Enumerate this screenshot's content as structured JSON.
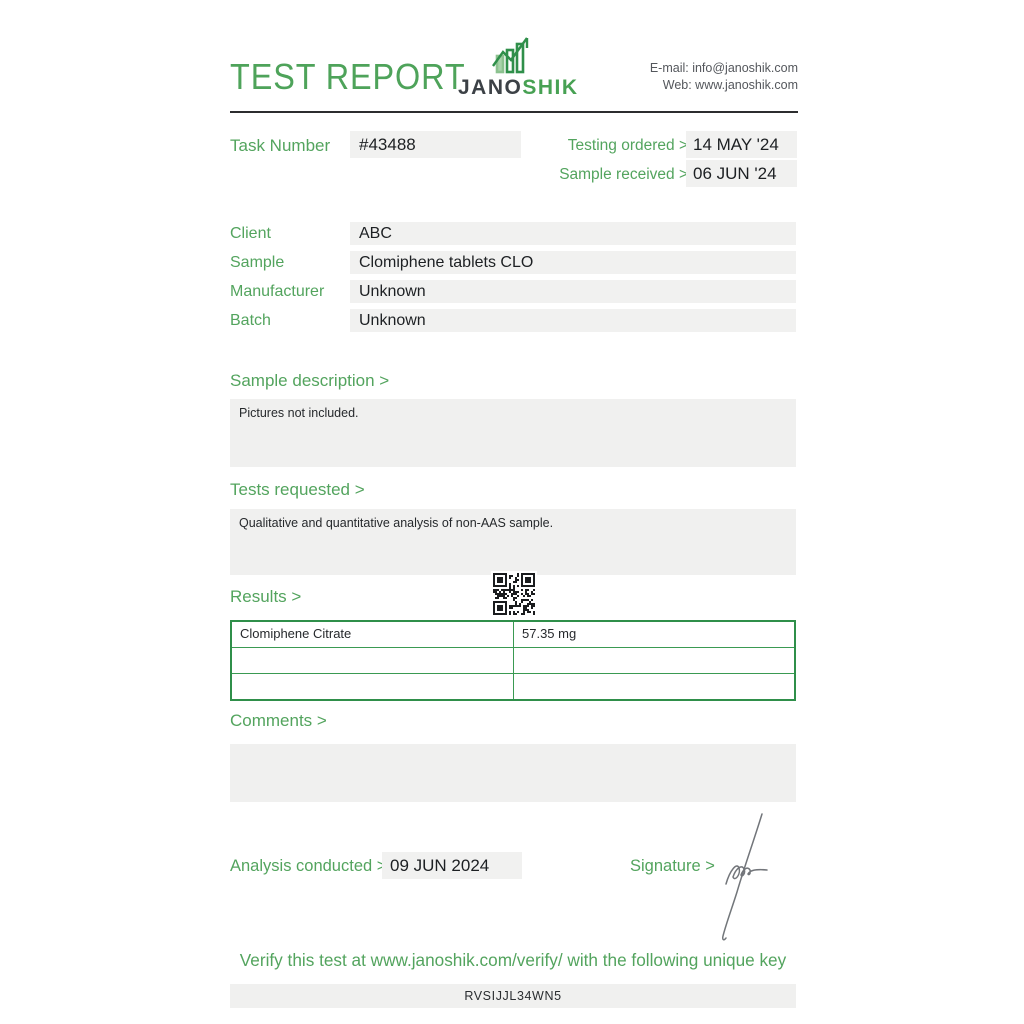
{
  "accent_color": "#53a45e",
  "header": {
    "title": "TEST REPORT",
    "logo": {
      "word_dark": "JANO",
      "word_green": "SHIK",
      "mark_icon": "chart-bars-logo"
    },
    "contact": {
      "email_line": "E-mail: info@janoshik.com",
      "web_line": "Web: www.janoshik.com"
    }
  },
  "task": {
    "label": "Task Number",
    "number": "#43488",
    "testing_ordered_label": "Testing ordered >",
    "testing_ordered_value": "14 MAY '24",
    "sample_received_label": "Sample received >",
    "sample_received_value": "06 JUN '24"
  },
  "info_fields": [
    {
      "label": "Client",
      "value": "ABC"
    },
    {
      "label": "Sample",
      "value": "Clomiphene tablets CLO"
    },
    {
      "label": "Manufacturer",
      "value": "Unknown"
    },
    {
      "label": "Batch",
      "value": "Unknown"
    }
  ],
  "sections": {
    "sample_description": {
      "label": "Sample description >",
      "content": "Pictures not included."
    },
    "tests_requested": {
      "label": "Tests requested >",
      "content": "Qualitative and quantitative analysis of non-AAS sample."
    },
    "results": {
      "label": "Results >",
      "qr_icon": "qr-code"
    },
    "comments": {
      "label": "Comments >",
      "content": ""
    }
  },
  "results_table": {
    "rows": [
      {
        "analyte": "Clomiphene Citrate",
        "amount": "57.35 mg"
      },
      {
        "analyte": "",
        "amount": ""
      },
      {
        "analyte": "",
        "amount": ""
      }
    ]
  },
  "footer": {
    "analysis_label": "Analysis conducted >",
    "analysis_date": "09 JUN 2024",
    "signature_label": "Signature >",
    "verify_text": "Verify this test at www.janoshik.com/verify/ with the following unique key",
    "unique_key": "RVSIJJL34WN5"
  }
}
